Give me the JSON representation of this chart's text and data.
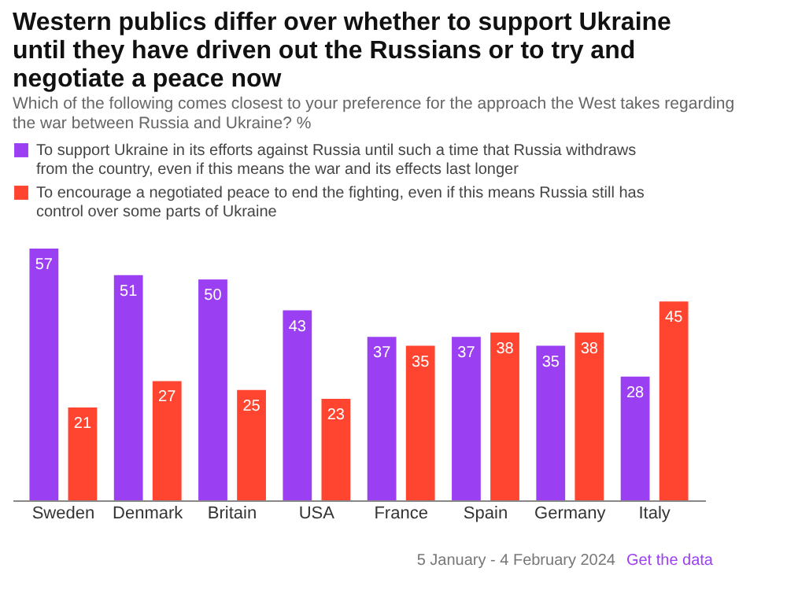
{
  "chart_data": {
    "type": "bar",
    "title": "Western publics differ over whether to support Ukraine until they have driven out the Russians or to try and negotiate a peace now",
    "subtitle": "Which of the following comes closest to your preference for the approach the West takes regarding the war between Russia and Ukraine? %",
    "categories": [
      "Sweden",
      "Denmark",
      "Britain",
      "USA",
      "France",
      "Spain",
      "Germany",
      "Italy"
    ],
    "series": [
      {
        "name": "To support Ukraine in its efforts against Russia until such a time that Russia withdraws from the country, even if this means the war and its effects last longer",
        "color": "#9b3ff3",
        "values": [
          57,
          51,
          50,
          43,
          37,
          37,
          35,
          28
        ]
      },
      {
        "name": "To encourage a negotiated peace to end the fighting, even if this means Russia still has control over some parts of Ukraine",
        "color": "#ff4530",
        "values": [
          21,
          27,
          25,
          23,
          35,
          38,
          38,
          45
        ]
      }
    ],
    "tick_labels": "x",
    "grid": false,
    "legend": "top",
    "data_labels": true,
    "annotations": [
      "5 January - 4 February 2024",
      "Get the data"
    ]
  }
}
